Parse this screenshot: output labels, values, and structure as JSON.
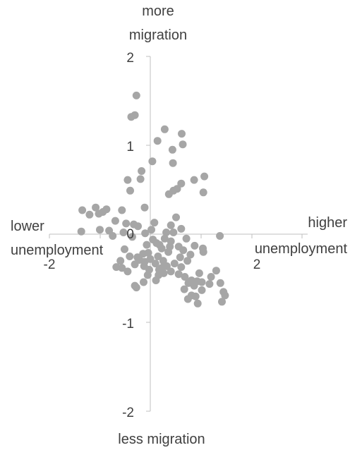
{
  "chart_data": {
    "type": "scatter",
    "title": "",
    "labels": {
      "y_top": [
        "more",
        "migration"
      ],
      "y_bottom": "less migration",
      "x_left": [
        "lower",
        "unemployment"
      ],
      "x_right": [
        "higher",
        "unemployment"
      ]
    },
    "xlim": [
      -2,
      2.5
    ],
    "ylim": [
      -2,
      2
    ],
    "x_ticks": [
      -2,
      2
    ],
    "y_ticks": [
      2,
      1,
      0,
      -1,
      -2
    ],
    "grid": false,
    "legend": "none",
    "point_color": "#a6a6a6",
    "points": [
      [
        -0.27,
        1.56
      ],
      [
        -0.3,
        1.34
      ],
      [
        -0.37,
        1.32
      ],
      [
        0.28,
        1.18
      ],
      [
        0.14,
        1.05
      ],
      [
        0.61,
        1.13
      ],
      [
        0.63,
        1.01
      ],
      [
        0.43,
        0.95
      ],
      [
        0.44,
        0.8
      ],
      [
        0.04,
        0.82
      ],
      [
        -0.17,
        0.71
      ],
      [
        -0.19,
        0.62
      ],
      [
        -0.44,
        0.61
      ],
      [
        -0.39,
        0.49
      ],
      [
        0.6,
        0.57
      ],
      [
        0.85,
        0.61
      ],
      [
        1.05,
        0.65
      ],
      [
        1.03,
        0.47
      ],
      [
        0.36,
        0.45
      ],
      [
        0.45,
        0.49
      ],
      [
        0.52,
        0.51
      ],
      [
        -0.11,
        0.3
      ],
      [
        -1.32,
        0.27
      ],
      [
        -1.18,
        0.22
      ],
      [
        -1.06,
        0.3
      ],
      [
        -0.92,
        0.25
      ],
      [
        -0.55,
        0.27
      ],
      [
        -0.85,
        0.28
      ],
      [
        -1.0,
        0.23
      ],
      [
        -0.68,
        0.15
      ],
      [
        -0.47,
        0.12
      ],
      [
        -0.32,
        0.11
      ],
      [
        -0.24,
        0.09
      ],
      [
        0.5,
        0.19
      ],
      [
        0.4,
        0.1
      ],
      [
        0.6,
        0.06
      ],
      [
        -1.34,
        0.03
      ],
      [
        -0.98,
        0.05
      ],
      [
        -0.8,
        0.04
      ],
      [
        -0.73,
        -0.02
      ],
      [
        -0.52,
        0.02
      ],
      [
        -0.35,
        -0.03
      ],
      [
        -0.1,
        0.01
      ],
      [
        0.02,
        0.05
      ],
      [
        0.05,
        -0.06
      ],
      [
        0.08,
        0.13
      ],
      [
        0.12,
        -0.1
      ],
      [
        0.18,
        -0.12
      ],
      [
        0.22,
        -0.16
      ],
      [
        0.28,
        -0.05
      ],
      [
        0.31,
        0.02
      ],
      [
        0.35,
        -0.2
      ],
      [
        0.4,
        -0.08
      ],
      [
        0.45,
        0.02
      ],
      [
        0.55,
        -0.14
      ],
      [
        0.64,
        -0.18
      ],
      [
        0.7,
        -0.05
      ],
      [
        0.78,
        -0.23
      ],
      [
        0.86,
        -0.13
      ],
      [
        1.35,
        -0.02
      ],
      [
        1.02,
        -0.16
      ],
      [
        1.03,
        -0.2
      ],
      [
        -0.07,
        -0.12
      ],
      [
        -0.14,
        -0.22
      ],
      [
        -0.21,
        -0.29
      ],
      [
        -0.3,
        -0.34
      ],
      [
        -0.4,
        -0.25
      ],
      [
        -0.58,
        -0.3
      ],
      [
        -0.66,
        -0.37
      ],
      [
        -0.11,
        -0.31
      ],
      [
        -0.02,
        -0.4
      ],
      [
        0.0,
        -0.28
      ],
      [
        0.1,
        -0.33
      ],
      [
        0.17,
        -0.4
      ],
      [
        0.22,
        -0.38
      ],
      [
        0.25,
        -0.3
      ],
      [
        0.32,
        -0.36
      ],
      [
        0.4,
        -0.42
      ],
      [
        0.47,
        -0.33
      ],
      [
        0.55,
        -0.45
      ],
      [
        0.6,
        -0.37
      ],
      [
        0.67,
        -0.48
      ],
      [
        0.74,
        -0.55
      ],
      [
        0.8,
        -0.52
      ],
      [
        0.91,
        -0.53
      ],
      [
        0.95,
        -0.44
      ],
      [
        1.0,
        -0.54
      ],
      [
        1.15,
        -0.56
      ],
      [
        1.28,
        -0.41
      ],
      [
        1.36,
        -0.55
      ],
      [
        1.42,
        -0.65
      ],
      [
        1.45,
        -0.69
      ],
      [
        1.39,
        -0.76
      ],
      [
        0.66,
        -0.62
      ],
      [
        0.73,
        -0.73
      ],
      [
        0.8,
        -0.69
      ],
      [
        0.88,
        -0.7
      ],
      [
        0.92,
        -0.78
      ],
      [
        1.0,
        -0.63
      ],
      [
        0.85,
        -0.58
      ],
      [
        -0.5,
        -0.17
      ],
      [
        -0.55,
        -0.38
      ],
      [
        -0.44,
        -0.42
      ],
      [
        -0.04,
        -0.21
      ],
      [
        0.15,
        -0.25
      ],
      [
        0.26,
        -0.44
      ],
      [
        -0.12,
        -0.36
      ],
      [
        1.18,
        -0.48
      ],
      [
        0.58,
        -0.26
      ],
      [
        0.72,
        -0.3
      ],
      [
        0.38,
        -0.14
      ],
      [
        -0.25,
        -0.26
      ],
      [
        -0.3,
        -0.58
      ],
      [
        -0.27,
        -0.6
      ],
      [
        -0.13,
        -0.54
      ],
      [
        -0.05,
        -0.46
      ],
      [
        0.11,
        -0.52
      ],
      [
        0.16,
        -0.46
      ]
    ]
  }
}
